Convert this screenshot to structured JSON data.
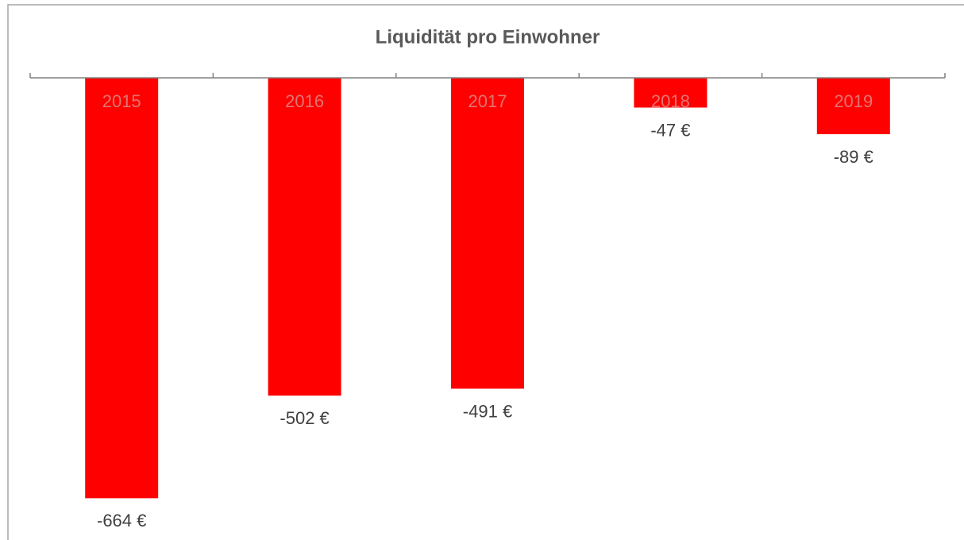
{
  "chart_data": {
    "type": "bar",
    "title": "Liquidität pro Einwohner",
    "categories": [
      "2015",
      "2016",
      "2017",
      "2018",
      "2019"
    ],
    "values": [
      -664,
      -502,
      -491,
      -47,
      -89
    ],
    "value_labels": [
      "-664 €",
      "-502 €",
      "-491 €",
      "-47 €",
      "-89 €"
    ],
    "color": "#ff0000",
    "ylim": [
      -730,
      0
    ]
  }
}
